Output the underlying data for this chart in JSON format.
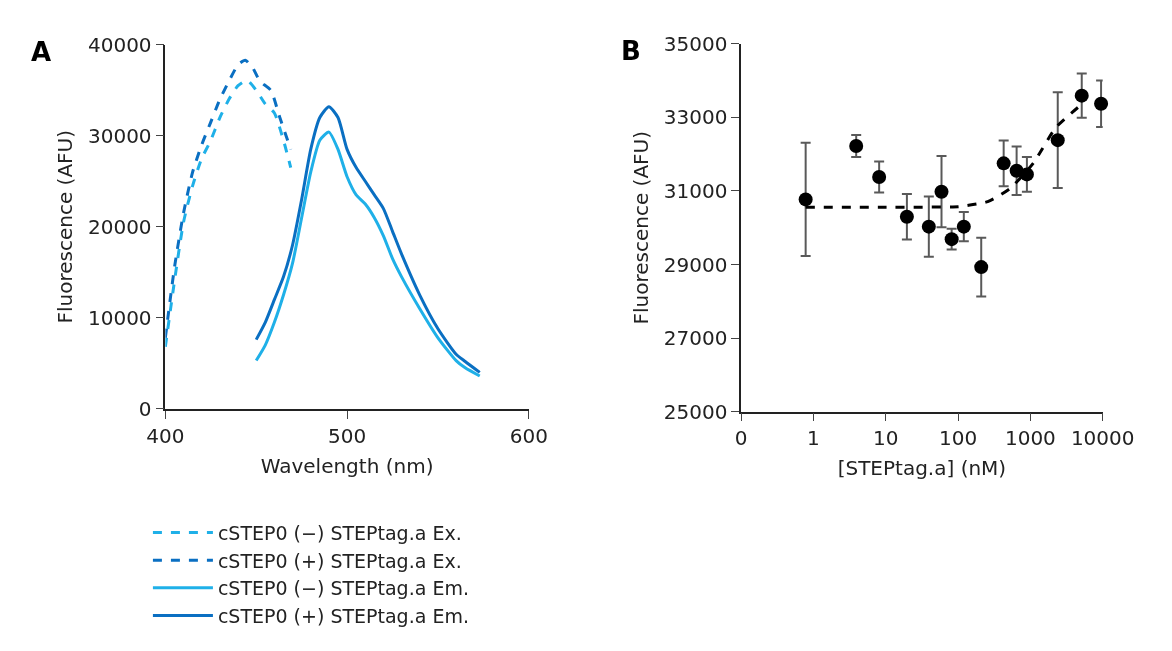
{
  "chart_data": [
    {
      "type": "line",
      "xlabel": "Wavelength (nm)",
      "ylabel": "Fluorescence (AFU)",
      "annotations": [
        "A"
      ],
      "xlim": [
        400,
        600
      ],
      "xticks": [
        400,
        500,
        600
      ],
      "ylim": [
        0,
        40000
      ],
      "yticks": [
        0,
        10000,
        20000,
        30000,
        40000
      ],
      "legend": "bottom",
      "marker": "none",
      "series": [
        {
          "name": "cSTEP0 (−) STEPtag.a Ex.",
          "color": "#1fb0e8",
          "line_style": "dashed",
          "x": [
            400,
            405,
            410,
            415,
            420,
            425,
            430,
            435,
            440,
            445,
            450,
            455,
            460,
            465,
            469
          ],
          "values": [
            6800,
            14000,
            20500,
            24500,
            27500,
            29500,
            32000,
            34000,
            35500,
            36100,
            35000,
            33500,
            32500,
            29500,
            26500
          ]
        },
        {
          "name": "cSTEP0 (+) STEPtag.a Ex.",
          "color": "#0a6fc2",
          "line_style": "dashed",
          "x": [
            400,
            405,
            410,
            415,
            420,
            425,
            430,
            435,
            440,
            444,
            448,
            452,
            458,
            463,
            469
          ],
          "values": [
            7800,
            15500,
            21500,
            26000,
            29000,
            31500,
            34000,
            36000,
            37800,
            38300,
            37500,
            36000,
            35000,
            32000,
            28500
          ]
        },
        {
          "name": "cSTEP0 (−) STEPtag.a Em.",
          "color": "#1fb0e8",
          "line_style": "solid",
          "x": [
            450,
            455,
            460,
            465,
            470,
            475,
            480,
            485,
            490,
            495,
            500,
            505,
            510,
            515,
            520,
            525,
            530,
            540,
            550,
            560,
            565,
            573
          ],
          "values": [
            5300,
            7000,
            9500,
            12500,
            16000,
            21000,
            26000,
            29500,
            30400,
            28500,
            25500,
            23500,
            22500,
            21000,
            19000,
            16500,
            14500,
            11000,
            7800,
            5300,
            4500,
            3600
          ]
        },
        {
          "name": "cSTEP0 (+) STEPtag.a Em.",
          "color": "#0a6fc2",
          "line_style": "solid",
          "x": [
            450,
            455,
            460,
            465,
            470,
            475,
            480,
            485,
            490,
            495,
            500,
            505,
            510,
            515,
            520,
            525,
            530,
            540,
            550,
            560,
            565,
            573
          ],
          "values": [
            7600,
            9500,
            12000,
            14500,
            18000,
            23000,
            28500,
            32000,
            33200,
            32000,
            28500,
            26500,
            25000,
            23500,
            22000,
            19500,
            17000,
            12500,
            8800,
            6000,
            5200,
            4000
          ]
        }
      ]
    },
    {
      "type": "scatter",
      "xlabel": "[STEPtag.a] (nM)",
      "ylabel": "Fluorescence (AFU)",
      "annotations": [
        "B"
      ],
      "log": "x",
      "xlim": [
        0.1,
        10000
      ],
      "xticks": [
        {
          "value": 0.1,
          "label": "0"
        },
        1,
        10,
        100,
        1000,
        10000
      ],
      "ylim": [
        25000,
        35000
      ],
      "yticks": [
        25000,
        27000,
        29000,
        31000,
        33000,
        35000
      ],
      "legend": false,
      "marker": "circle",
      "series": [
        {
          "type": "scatter",
          "color": "#000000",
          "x": [
            0.78,
            3.9,
            8.1,
            19.6,
            39.4,
            59,
            81.5,
            120,
            209,
            427,
            645,
            895,
            2390,
            5130,
            9500
          ],
          "values": [
            30770,
            32220,
            31380,
            30300,
            30030,
            30980,
            29690,
            30030,
            28930,
            31750,
            31550,
            31450,
            32380,
            33590,
            33370
          ],
          "errors": [
            1540,
            300,
            420,
            620,
            820,
            970,
            280,
            400,
            800,
            620,
            660,
            470,
            1300,
            600,
            630
          ]
        },
        {
          "type": "line",
          "color": "#000000",
          "line_style": "dashed",
          "marker": "none",
          "x": [
            0.78,
            10,
            100,
            130,
            257,
            525,
            1100,
            2240,
            4680
          ],
          "values": [
            30560,
            30560,
            30570,
            30600,
            30710,
            31070,
            31760,
            32720,
            33290
          ]
        }
      ]
    }
  ]
}
